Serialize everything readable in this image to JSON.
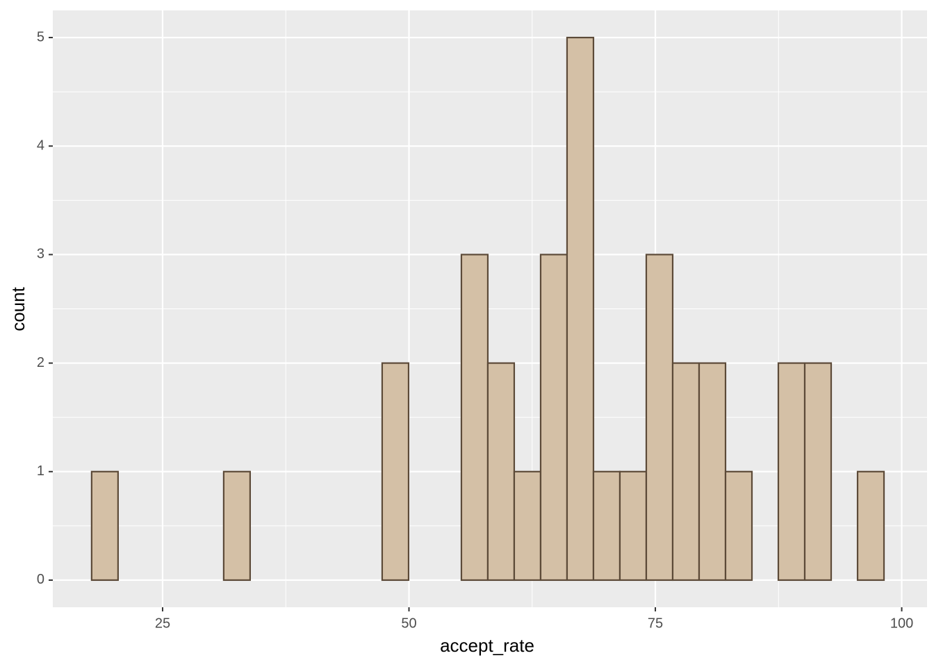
{
  "chart_data": {
    "type": "histogram",
    "x_label": "accept_rate",
    "y_label": "count",
    "bins": [
      17.8,
      20.48,
      23.16,
      25.84,
      28.52,
      31.2,
      33.88,
      36.56,
      39.24,
      41.92,
      44.6,
      47.28,
      49.96,
      52.64,
      55.32,
      58.0,
      60.68,
      63.36,
      66.04,
      68.72,
      71.4,
      74.08,
      76.76,
      79.44,
      82.12,
      84.8,
      87.48,
      90.16,
      92.84,
      95.52,
      98.2
    ],
    "values": [
      1,
      0,
      0,
      0,
      0,
      1,
      0,
      0,
      0,
      0,
      0,
      2,
      0,
      0,
      3,
      2,
      1,
      3,
      5,
      1,
      1,
      3,
      2,
      2,
      1,
      0,
      2,
      2,
      0,
      1
    ],
    "color": "#d4c0a6",
    "edge_color": "#5c4a38",
    "xlim": [
      13.86,
      102.57
    ],
    "xticks": [
      25,
      50,
      75,
      100
    ],
    "ylim": [
      -0.25,
      5.25
    ],
    "yticks": [
      0,
      1,
      2,
      3,
      4,
      5
    ],
    "grid": true
  }
}
